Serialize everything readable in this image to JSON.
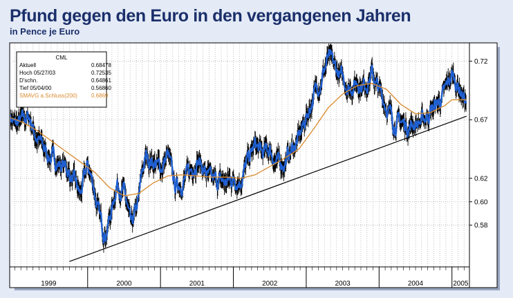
{
  "header": {
    "title": "Pfund gegen den Euro in den vergangenen Jahren",
    "subtitle": "in Pence je Euro"
  },
  "colors": {
    "background": "#e4ebf6",
    "title": "#1b2f6b",
    "price_fill": "#1f5fd0",
    "price_line": "#000000",
    "sma": "#d98a2e",
    "trendline": "#000000",
    "grid": "#b0b0b0"
  },
  "legend": {
    "heading": "CML",
    "rows": [
      {
        "label": "Aktuell",
        "value": "0.68478"
      },
      {
        "label": "Hoch  05/27/03",
        "value": "0.72535"
      },
      {
        "label": "D'schn.",
        "value": "0.64861"
      },
      {
        "label": "Tief  05/04/00",
        "value": "0.56860"
      },
      {
        "label": "SMAVG a.Schluss(200)",
        "value": "0.6869"
      }
    ]
  },
  "chart_data": {
    "type": "line",
    "title": "Pfund gegen den Euro in den vergangenen Jahren",
    "ylabel": "in Pence je Euro",
    "xlabel": "",
    "ylim": [
      0.545,
      0.735
    ],
    "xlim": [
      1998.93,
      2005.24
    ],
    "y_ticks": [
      "0.72",
      "0.67",
      "0.62",
      "0.60",
      "0.58"
    ],
    "x_ticks": [
      "1999",
      "2000",
      "2001",
      "2002",
      "2003",
      "2004",
      "2005"
    ],
    "grid": true,
    "legend_position": "top-left",
    "series": [
      {
        "name": "CML",
        "x": [
          1998.93,
          1999.0,
          1999.1,
          1999.2,
          1999.3,
          1999.4,
          1999.5,
          1999.6,
          1999.7,
          1999.8,
          1999.9,
          2000.0,
          2000.08,
          2000.15,
          2000.2,
          2000.25,
          2000.34,
          2000.4,
          2000.5,
          2000.55,
          2000.6,
          2000.7,
          2000.75,
          2000.8,
          2000.9,
          2001.0,
          2001.1,
          2001.2,
          2001.3,
          2001.4,
          2001.5,
          2001.6,
          2001.7,
          2001.8,
          2001.9,
          2002.0,
          2002.1,
          2002.2,
          2002.3,
          2002.4,
          2002.5,
          2002.6,
          2002.7,
          2002.8,
          2002.9,
          2003.0,
          2003.1,
          2003.2,
          2003.3,
          2003.4,
          2003.5,
          2003.6,
          2003.7,
          2003.8,
          2003.9,
          2004.0,
          2004.1,
          2004.2,
          2004.3,
          2004.4,
          2004.5,
          2004.6,
          2004.7,
          2004.8,
          2004.9,
          2005.0,
          2005.1,
          2005.2
        ],
        "values": [
          0.675,
          0.665,
          0.668,
          0.672,
          0.655,
          0.645,
          0.638,
          0.633,
          0.63,
          0.618,
          0.605,
          0.63,
          0.615,
          0.59,
          0.578,
          0.575,
          0.595,
          0.617,
          0.608,
          0.593,
          0.575,
          0.6,
          0.625,
          0.638,
          0.635,
          0.628,
          0.64,
          0.612,
          0.618,
          0.624,
          0.638,
          0.627,
          0.616,
          0.617,
          0.616,
          0.62,
          0.62,
          0.634,
          0.648,
          0.64,
          0.645,
          0.632,
          0.634,
          0.644,
          0.654,
          0.672,
          0.69,
          0.705,
          0.722,
          0.713,
          0.704,
          0.698,
          0.703,
          0.7,
          0.71,
          0.694,
          0.683,
          0.668,
          0.668,
          0.664,
          0.668,
          0.668,
          0.678,
          0.683,
          0.692,
          0.708,
          0.698,
          0.685
        ]
      },
      {
        "name": "SMAVG a.Schluss(200)",
        "x": [
          1998.93,
          1999.1,
          1999.3,
          1999.5,
          1999.7,
          1999.9,
          2000.1,
          2000.3,
          2000.5,
          2000.7,
          2000.9,
          2001.1,
          2001.3,
          2001.5,
          2001.7,
          2001.9,
          2002.1,
          2002.3,
          2002.5,
          2002.7,
          2002.9,
          2003.1,
          2003.3,
          2003.5,
          2003.7,
          2003.9,
          2004.1,
          2004.3,
          2004.5,
          2004.7,
          2004.9,
          2005.0,
          2005.2
        ],
        "values": [
          0.672,
          0.668,
          0.661,
          0.652,
          0.643,
          0.634,
          0.625,
          0.612,
          0.605,
          0.607,
          0.616,
          0.622,
          0.623,
          0.622,
          0.621,
          0.621,
          0.62,
          0.623,
          0.63,
          0.637,
          0.645,
          0.662,
          0.68,
          0.692,
          0.699,
          0.701,
          0.696,
          0.683,
          0.675,
          0.676,
          0.682,
          0.687,
          0.687
        ]
      }
    ],
    "trendline": {
      "x": [
        1999.75,
        2005.2
      ],
      "values": [
        0.549,
        0.673
      ]
    }
  }
}
